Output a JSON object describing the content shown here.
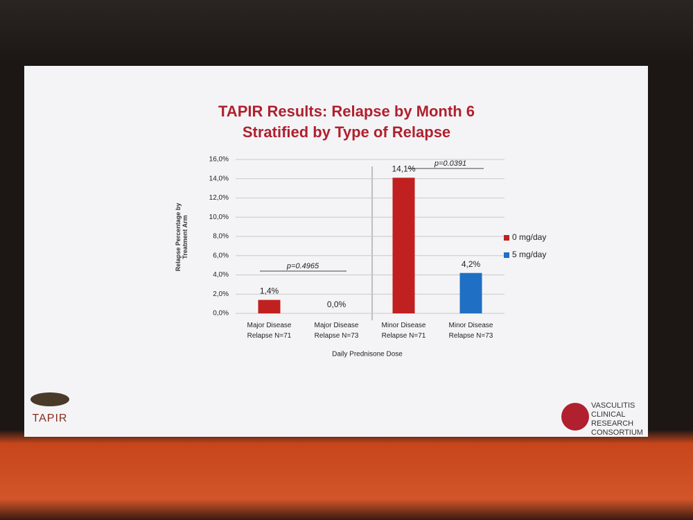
{
  "chart_data": {
    "type": "bar",
    "title": [
      "TAPIR Results: Relapse by Month 6",
      "Stratified by Type of Relapse"
    ],
    "xlabel": "Daily Prednisone Dose",
    "ylabel": "Relapse Percentage by Treatment Arm",
    "categories": [
      "Major Disease Relapse N=71",
      "Major Disease Relapse N=73",
      "Minor Disease Relapse N=71",
      "Minor Disease Relapse N=73"
    ],
    "series": [
      {
        "name": "0 mg/day",
        "color": "#c0201f",
        "values": [
          1.4,
          null,
          14.1,
          null
        ],
        "value_labels": [
          "1,4%",
          null,
          "14,1%",
          null
        ]
      },
      {
        "name": "5 mg/day",
        "color": "#1f6fc4",
        "values": [
          null,
          0.0,
          null,
          4.2
        ],
        "value_labels": [
          null,
          "0,0%",
          null,
          "4,2%"
        ]
      }
    ],
    "ylim": [
      0,
      16
    ],
    "yticks": [
      {
        "value": 0,
        "label": "0,0%"
      },
      {
        "value": 2,
        "label": "2,0%"
      },
      {
        "value": 4,
        "label": "4,0%"
      },
      {
        "value": 6,
        "label": "6,0%"
      },
      {
        "value": 8,
        "label": "8,0%"
      },
      {
        "value": 10,
        "label": "10,0%"
      },
      {
        "value": 12,
        "label": "12,0%"
      },
      {
        "value": 14,
        "label": "14,0%"
      },
      {
        "value": 16,
        "label": "16,0%"
      }
    ],
    "grid": true,
    "legend": "right",
    "annotations": [
      "p=0.4965",
      "p=0.0391"
    ]
  },
  "footer": {
    "left_logo": "TAPIR",
    "right_logo": [
      "VASCULITIS",
      "CLINICAL",
      "RESEARCH",
      "CONSORTIUM"
    ]
  }
}
